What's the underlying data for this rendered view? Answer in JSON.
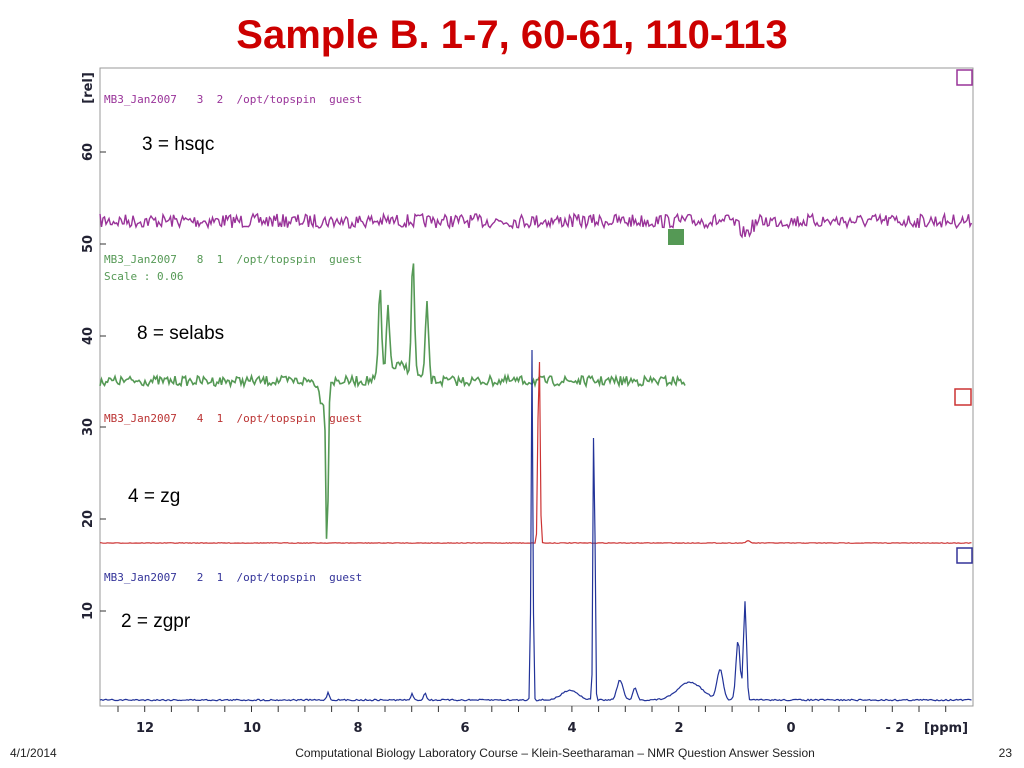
{
  "slide": {
    "title": "Sample B. 1-7, 60-61, 110-113",
    "footer": {
      "date": "4/1/2014",
      "course": "Computational Biology Laboratory Course – Klein-Seetharaman – NMR Question Answer Session",
      "page": "23"
    }
  },
  "plot": {
    "y_axis": {
      "unit": "[rel]",
      "ticks": [
        "60",
        "50",
        "40",
        "30",
        "20",
        "10"
      ]
    },
    "x_axis": {
      "unit": "[ppm]",
      "ticks": [
        "12",
        "10",
        "8",
        "6",
        "4",
        "2",
        "0",
        "- 2"
      ]
    },
    "spectra": [
      {
        "header": "MB3_Jan2007   3  2  /opt/topspin  guest",
        "label": "3 = hsqc"
      },
      {
        "header": "MB3_Jan2007   8  1  /opt/topspin  guest",
        "scale": "Scale : 0.06",
        "label": "8 = selabs"
      },
      {
        "header": "MB3_Jan2007   4  1  /opt/topspin  guest",
        "label": "4 = zg"
      },
      {
        "header": "MB3_Jan2007   2  1  /opt/topspin  guest",
        "label": "2 = zgpr"
      }
    ]
  }
}
